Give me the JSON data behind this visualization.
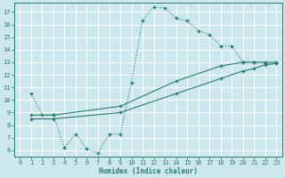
{
  "xlabel": "Humidex (Indice chaleur)",
  "bg_color": "#cce8ee",
  "grid_color": "#b8d8df",
  "line_color": "#2d7a6e",
  "xlim": [
    -0.5,
    23.5
  ],
  "ylim": [
    5.5,
    17.7
  ],
  "xticks": [
    0,
    1,
    2,
    3,
    4,
    5,
    6,
    7,
    8,
    9,
    10,
    11,
    12,
    13,
    14,
    15,
    16,
    17,
    18,
    19,
    20,
    21,
    22,
    23
  ],
  "yticks": [
    6,
    7,
    8,
    9,
    10,
    11,
    12,
    13,
    14,
    15,
    16,
    17
  ],
  "curve1_x": [
    1,
    2,
    3,
    4,
    5,
    6,
    7,
    8,
    9,
    10,
    11,
    12,
    13,
    14,
    15,
    16,
    17,
    18,
    19,
    20,
    21,
    22,
    23
  ],
  "curve1_y": [
    10.5,
    8.8,
    8.8,
    6.2,
    7.3,
    6.1,
    5.8,
    7.3,
    7.3,
    11.4,
    16.3,
    17.4,
    17.3,
    16.5,
    16.3,
    15.5,
    15.2,
    14.3,
    14.3,
    13.0,
    13.0,
    12.9,
    12.9
  ],
  "curve2_x": [
    1,
    3,
    9,
    14,
    18,
    20,
    21,
    22,
    23
  ],
  "curve2_y": [
    8.8,
    8.8,
    9.5,
    11.5,
    12.7,
    13.0,
    13.0,
    13.0,
    13.0
  ],
  "curve3_x": [
    1,
    3,
    9,
    14,
    18,
    20,
    21,
    22,
    23
  ],
  "curve3_y": [
    8.5,
    8.5,
    9.0,
    10.5,
    11.7,
    12.3,
    12.5,
    12.8,
    12.9
  ]
}
